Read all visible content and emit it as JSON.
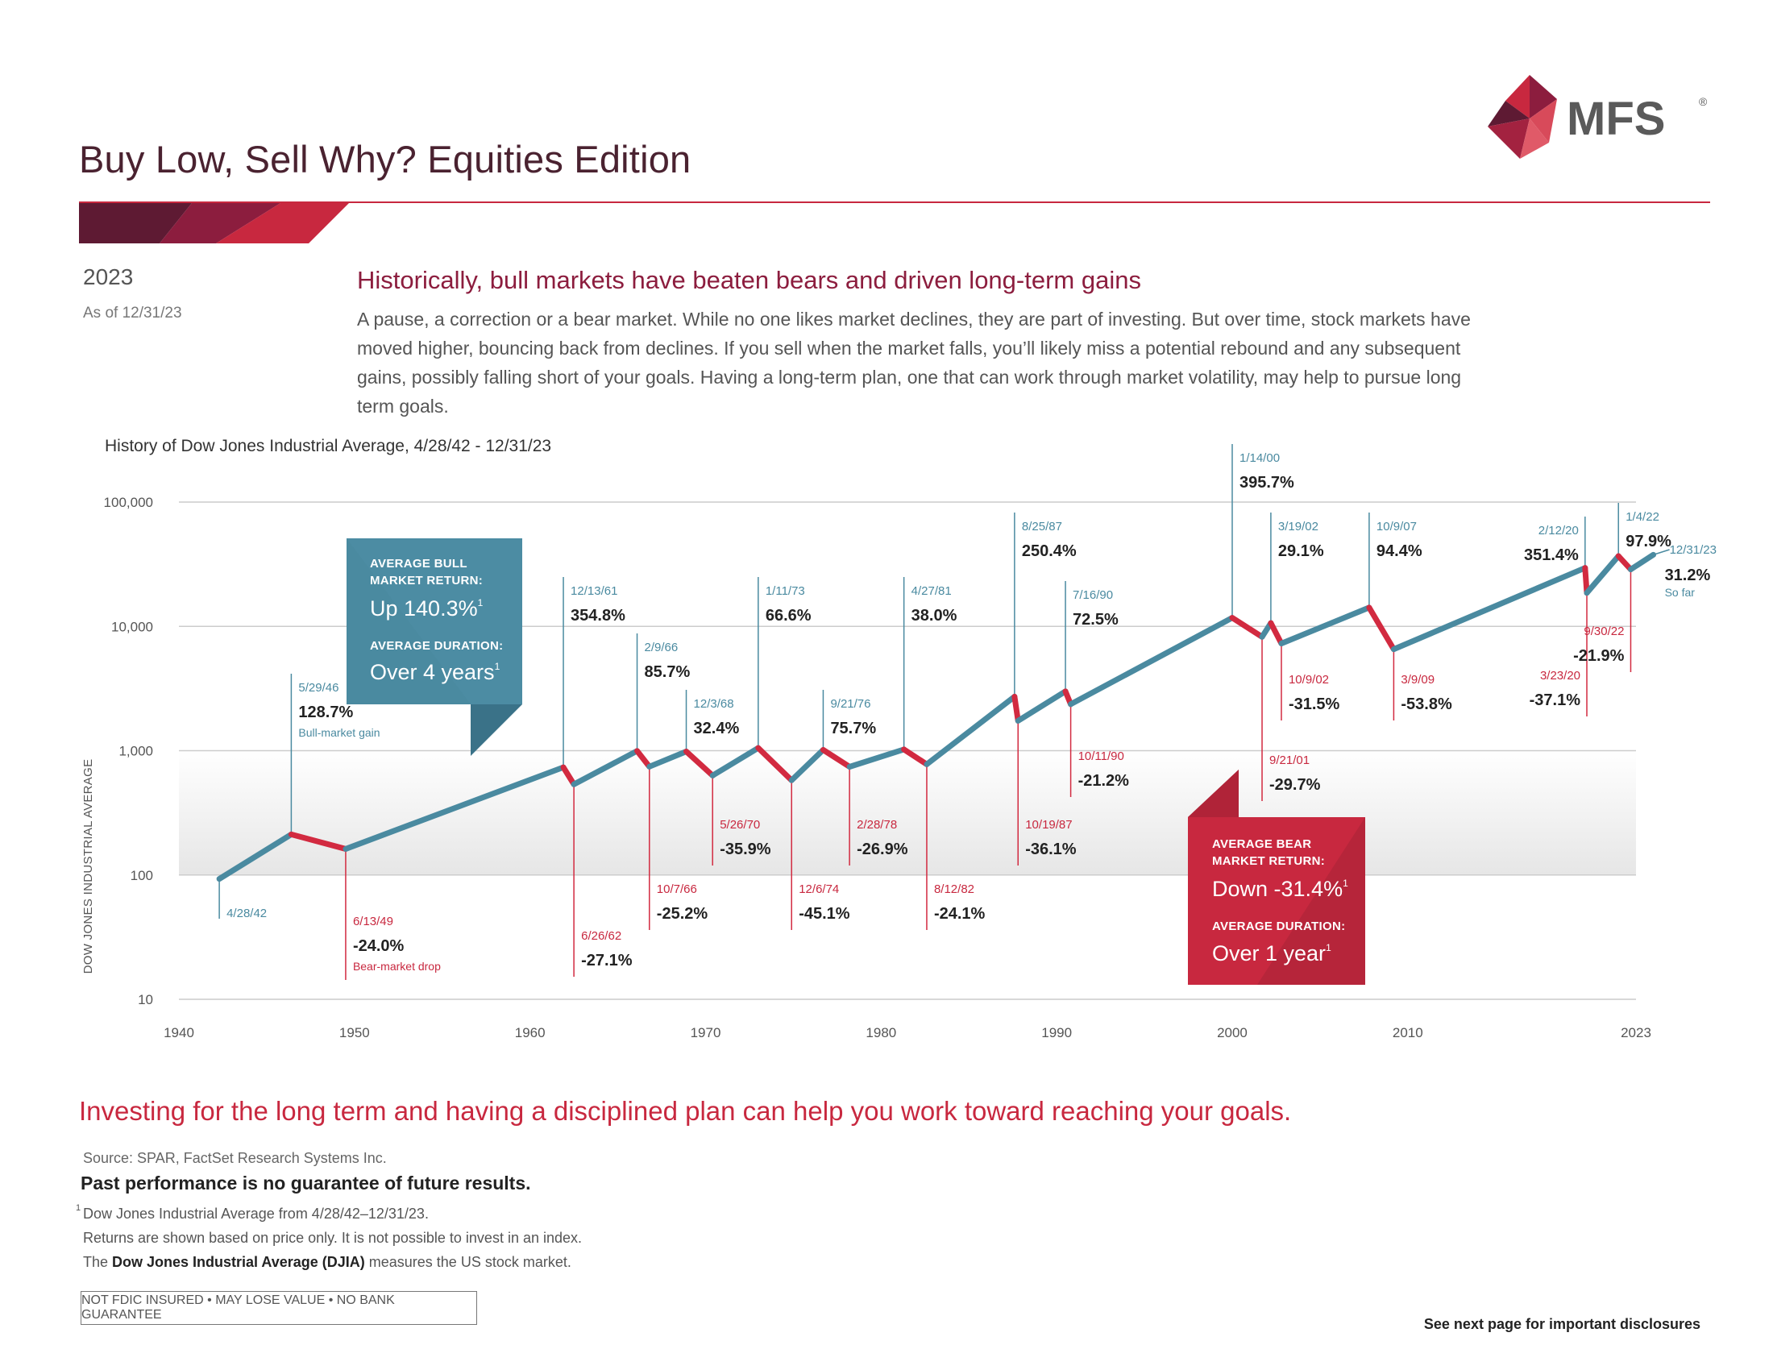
{
  "header": {
    "title": "Buy Low, Sell Why? Equities Edition",
    "logo_text": "MFS",
    "logo_mark": "®"
  },
  "meta": {
    "year": "2023",
    "as_of": "As of 12/31/23"
  },
  "headline": "Historically, bull markets have beaten bears and driven long-term gains",
  "intro": "A pause, a correction or a bear market. While no one likes market declines, they are part of investing. But over time, stock markets have moved higher, bouncing back from declines. If you sell when the market falls, you’ll likely miss a potential rebound and any subsequent gains, possibly falling short of your goals. Having a long-term plan, one that can work through market volatility, may help to pursue long term goals.",
  "chart_data": {
    "type": "line",
    "title": "History of Dow Jones Industrial Average, 4/28/42 - 12/31/23",
    "ylabel": "DOW JONES INDUSTRIAL AVERAGE",
    "yscale": "log",
    "ylim": [
      10,
      100000
    ],
    "xlim": [
      1940,
      2023
    ],
    "yticks": [
      {
        "value": 100000,
        "label": "100,000"
      },
      {
        "value": 10000,
        "label": "10,000"
      },
      {
        "value": 1000,
        "label": "1,000"
      },
      {
        "value": 100,
        "label": "100"
      },
      {
        "value": 10,
        "label": "10"
      }
    ],
    "xticks": [
      1940,
      1950,
      1960,
      1970,
      1980,
      1990,
      2000,
      2010,
      2023
    ],
    "colors": {
      "bull": "#4a8aa0",
      "bear": "#d22a40",
      "grid": "#cccccc",
      "band": "#ededed"
    },
    "points": [
      {
        "year": 1942.3,
        "value": 93
      },
      {
        "year": 1946.4,
        "value": 212
      },
      {
        "year": 1949.5,
        "value": 162
      },
      {
        "year": 1961.9,
        "value": 735
      },
      {
        "year": 1962.5,
        "value": 536
      },
      {
        "year": 1966.1,
        "value": 995
      },
      {
        "year": 1966.8,
        "value": 744
      },
      {
        "year": 1968.9,
        "value": 985
      },
      {
        "year": 1970.4,
        "value": 631
      },
      {
        "year": 1973.0,
        "value": 1052
      },
      {
        "year": 1974.9,
        "value": 578
      },
      {
        "year": 1976.7,
        "value": 1015
      },
      {
        "year": 1978.2,
        "value": 742
      },
      {
        "year": 1981.3,
        "value": 1024
      },
      {
        "year": 1982.6,
        "value": 777
      },
      {
        "year": 1987.6,
        "value": 2722
      },
      {
        "year": 1987.8,
        "value": 1739
      },
      {
        "year": 1990.5,
        "value": 3000
      },
      {
        "year": 1990.8,
        "value": 2365
      },
      {
        "year": 2000.0,
        "value": 11723
      },
      {
        "year": 2001.7,
        "value": 8235
      },
      {
        "year": 2002.2,
        "value": 10635
      },
      {
        "year": 2002.8,
        "value": 7286
      },
      {
        "year": 2007.8,
        "value": 14165
      },
      {
        "year": 2009.2,
        "value": 6547
      },
      {
        "year": 2020.1,
        "value": 29551
      },
      {
        "year": 2020.2,
        "value": 18591
      },
      {
        "year": 2022.0,
        "value": 36799
      },
      {
        "year": 2022.7,
        "value": 28726
      },
      {
        "year": 2023.99,
        "value": 37690
      }
    ],
    "annotations": [
      {
        "year": 1946.4,
        "value": 212,
        "kind": "bull",
        "date": "5/29/46",
        "pct": "128.7%",
        "note": "Bull-market gain",
        "ty": 860
      },
      {
        "year": 1961.9,
        "value": 735,
        "kind": "bull",
        "date": "12/13/61",
        "pct": "354.8%",
        "note": "",
        "ty": 740
      },
      {
        "year": 1966.1,
        "value": 995,
        "kind": "bull",
        "date": "2/9/66",
        "pct": "85.7%",
        "note": "",
        "ty": 810
      },
      {
        "year": 1968.9,
        "value": 985,
        "kind": "bull",
        "date": "12/3/68",
        "pct": "32.4%",
        "note": "",
        "ty": 880
      },
      {
        "year": 1973.0,
        "value": 1052,
        "kind": "bull",
        "date": "1/11/73",
        "pct": "66.6%",
        "note": "",
        "ty": 740
      },
      {
        "year": 1976.7,
        "value": 1015,
        "kind": "bull",
        "date": "9/21/76",
        "pct": "75.7%",
        "note": "",
        "ty": 880
      },
      {
        "year": 1981.3,
        "value": 1024,
        "kind": "bull",
        "date": "4/27/81",
        "pct": "38.0%",
        "note": "",
        "ty": 740
      },
      {
        "year": 1987.6,
        "value": 2722,
        "kind": "bull",
        "date": "8/25/87",
        "pct": "250.4%",
        "note": "",
        "ty": 660
      },
      {
        "year": 1990.5,
        "value": 3000,
        "kind": "bull",
        "date": "7/16/90",
        "pct": "72.5%",
        "note": "",
        "ty": 745
      },
      {
        "year": 2000.0,
        "value": 11723,
        "kind": "bull",
        "date": "1/14/00",
        "pct": "395.7%",
        "note": "",
        "ty": 575
      },
      {
        "year": 2002.2,
        "value": 10635,
        "kind": "bull",
        "date": "3/19/02",
        "pct": "29.1%",
        "note": "",
        "ty": 660
      },
      {
        "year": 2007.8,
        "value": 14165,
        "kind": "bull",
        "date": "10/9/07",
        "pct": "94.4%",
        "note": "",
        "ty": 660
      },
      {
        "year": 2020.1,
        "value": 29551,
        "kind": "bull",
        "date": "2/12/20",
        "pct": "351.4%",
        "note": "",
        "ty": 665,
        "align": "right"
      },
      {
        "year": 2022.0,
        "value": 36799,
        "kind": "bull",
        "date": "1/4/22",
        "pct": "97.9%",
        "note": "",
        "ty": 648
      },
      {
        "year": 2023.99,
        "value": 37690,
        "kind": "end",
        "date": "12/31/23",
        "pct": "31.2%",
        "note": "So far",
        "ty": 690
      },
      {
        "year": 1942.3,
        "value": 93,
        "kind": "start",
        "date": "4/28/42",
        "pct": "",
        "note": "",
        "ty": 1130
      },
      {
        "year": 1949.5,
        "value": 162,
        "kind": "bear",
        "date": "6/13/49",
        "pct": "-24.0%",
        "note": "Bear-market drop",
        "ty": 1150
      },
      {
        "year": 1962.5,
        "value": 536,
        "kind": "bear",
        "date": "6/26/62",
        "pct": "-27.1%",
        "note": "",
        "ty": 1168
      },
      {
        "year": 1966.8,
        "value": 744,
        "kind": "bear",
        "date": "10/7/66",
        "pct": "-25.2%",
        "note": "",
        "ty": 1110
      },
      {
        "year": 1970.4,
        "value": 631,
        "kind": "bear",
        "date": "5/26/70",
        "pct": "-35.9%",
        "note": "",
        "ty": 1030
      },
      {
        "year": 1974.9,
        "value": 578,
        "kind": "bear",
        "date": "12/6/74",
        "pct": "-45.1%",
        "note": "",
        "ty": 1110
      },
      {
        "year": 1978.2,
        "value": 742,
        "kind": "bear",
        "date": "2/28/78",
        "pct": "-26.9%",
        "note": "",
        "ty": 1030
      },
      {
        "year": 1982.6,
        "value": 777,
        "kind": "bear",
        "date": "8/12/82",
        "pct": "-24.1%",
        "note": "",
        "ty": 1110
      },
      {
        "year": 1987.8,
        "value": 1739,
        "kind": "bear",
        "date": "10/19/87",
        "pct": "-36.1%",
        "note": "",
        "ty": 1030
      },
      {
        "year": 1990.8,
        "value": 2365,
        "kind": "bear",
        "date": "10/11/90",
        "pct": "-21.2%",
        "note": "",
        "ty": 945
      },
      {
        "year": 2001.7,
        "value": 8235,
        "kind": "bear",
        "date": "9/21/01",
        "pct": "-29.7%",
        "note": "",
        "ty": 950
      },
      {
        "year": 2002.8,
        "value": 7286,
        "kind": "bear",
        "date": "10/9/02",
        "pct": "-31.5%",
        "note": "",
        "ty": 850
      },
      {
        "year": 2009.2,
        "value": 6547,
        "kind": "bear",
        "date": "3/9/09",
        "pct": "-53.8%",
        "note": "",
        "ty": 850
      },
      {
        "year": 2020.2,
        "value": 18591,
        "kind": "bear",
        "date": "3/23/20",
        "pct": "-37.1%",
        "note": "",
        "ty": 845,
        "align": "right"
      },
      {
        "year": 2022.7,
        "value": 28726,
        "kind": "bear",
        "date": "9/30/22",
        "pct": "-21.9%",
        "note": "",
        "ty": 790,
        "align": "right"
      }
    ]
  },
  "bull_box": {
    "return_label": "AVERAGE BULL MARKET RETURN:",
    "return_value": "Up 140.3%",
    "duration_label": "AVERAGE DURATION:",
    "duration_value": "Over 4 years",
    "footnote": "1"
  },
  "bear_box": {
    "return_label": "AVERAGE BEAR MARKET RETURN:",
    "return_value": "Down -31.4%",
    "duration_label": "AVERAGE DURATION:",
    "duration_value": "Over 1 year",
    "footnote": "1"
  },
  "tagline": "Investing for the long term and having a disciplined plan can help you work toward reaching your goals.",
  "footer": {
    "source": "Source: SPAR, FactSet Research Systems Inc.",
    "past_performance": "Past performance is no guarantee of future results.",
    "footnote_mark": "1",
    "footnote_1": "Dow Jones Industrial Average from 4/28/42–12/31/23.",
    "footnote_2": "Returns are shown based on price only. It is not possible to invest in an index.",
    "footnote_3_prefix": "The ",
    "footnote_3_bold": "Dow Jones Industrial Average (DJIA)",
    "footnote_3_suffix": " measures the US stock market.",
    "notice": "NOT FDIC INSURED • MAY LOSE VALUE • NO BANK GUARANTEE",
    "next_page": "See next page for important disclosures"
  }
}
